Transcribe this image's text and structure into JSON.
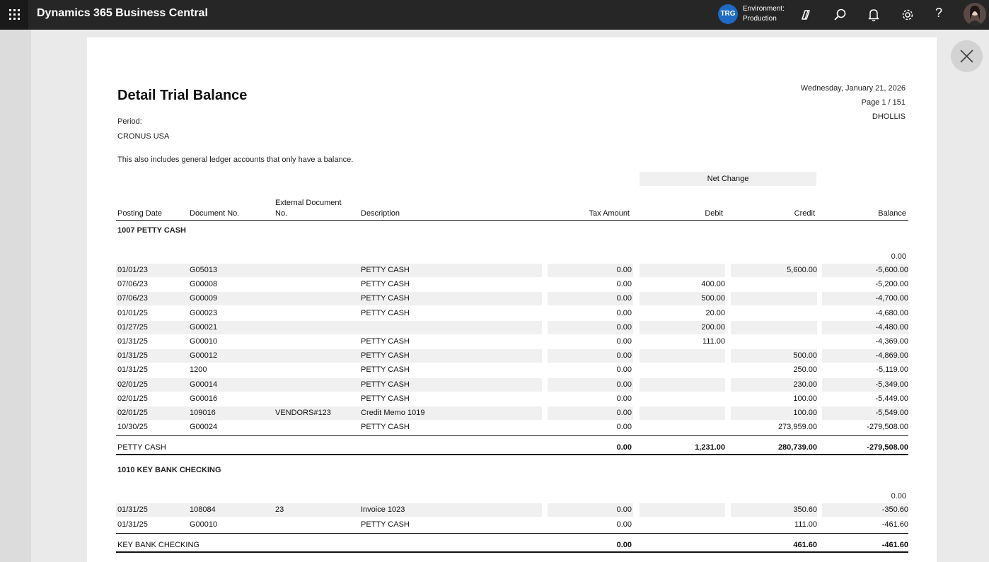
{
  "app": {
    "title": "Dynamics 365 Business Central",
    "env_badge": "TRG",
    "env_label": "Environment:",
    "env_value": "Production",
    "icons": [
      "waffle-icon",
      "copilot-icon",
      "search-icon",
      "bell-icon",
      "gear-icon",
      "help-icon",
      "avatar",
      "close-icon"
    ]
  },
  "report": {
    "title": "Detail Trial Balance",
    "period_label": "Period:",
    "company": "CRONUS USA",
    "note": "This also includes general ledger accounts that only have a balance.",
    "date": "Wednesday, January 21, 2026",
    "page": "Page 1 / 151",
    "user": "DHOLLIS",
    "net_change": "Net Change",
    "columns": {
      "posting_date": "Posting Date",
      "document_no": "Document No.",
      "external_doc_1": "External Document",
      "external_doc_2": "No.",
      "description": "Description",
      "tax_amount": "Tax Amount",
      "debit": "Debit",
      "credit": "Credit",
      "balance": "Balance"
    },
    "accounts": [
      {
        "header": "1007 PETTY CASH",
        "opening_balance": "0.00",
        "rows": [
          [
            "01/01/23",
            "G05013",
            "",
            "PETTY CASH",
            "0.00",
            "",
            "5,600.00",
            "-5,600.00"
          ],
          [
            "07/06/23",
            "G00008",
            "",
            "PETTY CASH",
            "0.00",
            "400.00",
            "",
            "-5,200.00"
          ],
          [
            "07/06/23",
            "G00009",
            "",
            "PETTY CASH",
            "0.00",
            "500.00",
            "",
            "-4,700.00"
          ],
          [
            "01/01/25",
            "G00023",
            "",
            "PETTY CASH",
            "0.00",
            "20.00",
            "",
            "-4,680.00"
          ],
          [
            "01/27/25",
            "G00021",
            "",
            "",
            "0.00",
            "200.00",
            "",
            "-4,480.00"
          ],
          [
            "01/31/25",
            "G00010",
            "",
            "PETTY CASH",
            "0.00",
            "111.00",
            "",
            "-4,369.00"
          ],
          [
            "01/31/25",
            "G00012",
            "",
            "PETTY CASH",
            "0.00",
            "",
            "500.00",
            "-4,869.00"
          ],
          [
            "01/31/25",
            "1200",
            "",
            "PETTY CASH",
            "0.00",
            "",
            "250.00",
            "-5,119.00"
          ],
          [
            "02/01/25",
            "G00014",
            "",
            "PETTY CASH",
            "0.00",
            "",
            "230.00",
            "-5,349.00"
          ],
          [
            "02/01/25",
            "G00016",
            "",
            "PETTY CASH",
            "0.00",
            "",
            "100.00",
            "-5,449.00"
          ],
          [
            "02/01/25",
            "109016",
            "VENDORS#123",
            "Credit Memo 1019",
            "0.00",
            "",
            "100.00",
            "-5,549.00"
          ],
          [
            "10/30/25",
            "G00024",
            "",
            "PETTY CASH",
            "0.00",
            "",
            "273,959.00",
            "-279,508.00"
          ]
        ],
        "total": [
          "PETTY CASH",
          "0.00",
          "1,231.00",
          "280,739.00",
          "-279,508.00"
        ]
      },
      {
        "header": "1010 KEY BANK CHECKING",
        "opening_balance": "0.00",
        "rows": [
          [
            "01/31/25",
            "108084",
            "23",
            "Invoice 1023",
            "0.00",
            "",
            "350.60",
            "-350.60"
          ],
          [
            "01/31/25",
            "G00010",
            "",
            "PETTY CASH",
            "0.00",
            "",
            "111.00",
            "-461.60"
          ]
        ],
        "total": [
          "KEY BANK CHECKING",
          "0.00",
          "",
          "461.60",
          "-461.60"
        ]
      }
    ]
  }
}
